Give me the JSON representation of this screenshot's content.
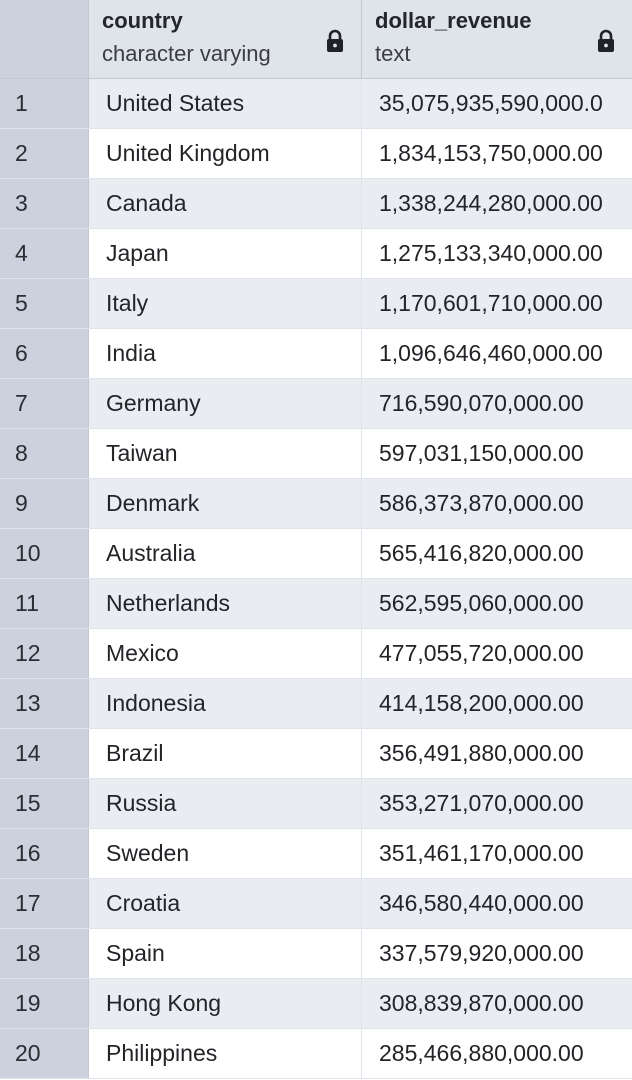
{
  "columns": [
    {
      "name": "country",
      "type": "character varying",
      "icon": "lock-icon"
    },
    {
      "name": "dollar_revenue",
      "type": "text",
      "icon": "lock-icon"
    }
  ],
  "rows": [
    {
      "num": "1",
      "country": "United States",
      "revenue": "35,075,935,590,000.0"
    },
    {
      "num": "2",
      "country": "United Kingdom",
      "revenue": "1,834,153,750,000.00"
    },
    {
      "num": "3",
      "country": "Canada",
      "revenue": "1,338,244,280,000.00"
    },
    {
      "num": "4",
      "country": "Japan",
      "revenue": "1,275,133,340,000.00"
    },
    {
      "num": "5",
      "country": "Italy",
      "revenue": "1,170,601,710,000.00"
    },
    {
      "num": "6",
      "country": "India",
      "revenue": "1,096,646,460,000.00"
    },
    {
      "num": "7",
      "country": "Germany",
      "revenue": "716,590,070,000.00"
    },
    {
      "num": "8",
      "country": "Taiwan",
      "revenue": "597,031,150,000.00"
    },
    {
      "num": "9",
      "country": "Denmark",
      "revenue": "586,373,870,000.00"
    },
    {
      "num": "10",
      "country": "Australia",
      "revenue": "565,416,820,000.00"
    },
    {
      "num": "11",
      "country": "Netherlands",
      "revenue": "562,595,060,000.00"
    },
    {
      "num": "12",
      "country": "Mexico",
      "revenue": "477,055,720,000.00"
    },
    {
      "num": "13",
      "country": "Indonesia",
      "revenue": "414,158,200,000.00"
    },
    {
      "num": "14",
      "country": "Brazil",
      "revenue": "356,491,880,000.00"
    },
    {
      "num": "15",
      "country": "Russia",
      "revenue": "353,271,070,000.00"
    },
    {
      "num": "16",
      "country": "Sweden",
      "revenue": "351,461,170,000.00"
    },
    {
      "num": "17",
      "country": "Croatia",
      "revenue": "346,580,440,000.00"
    },
    {
      "num": "18",
      "country": "Spain",
      "revenue": "337,579,920,000.00"
    },
    {
      "num": "19",
      "country": "Hong Kong",
      "revenue": "308,839,870,000.00"
    },
    {
      "num": "20",
      "country": "Philippines",
      "revenue": "285,466,880,000.00"
    }
  ]
}
